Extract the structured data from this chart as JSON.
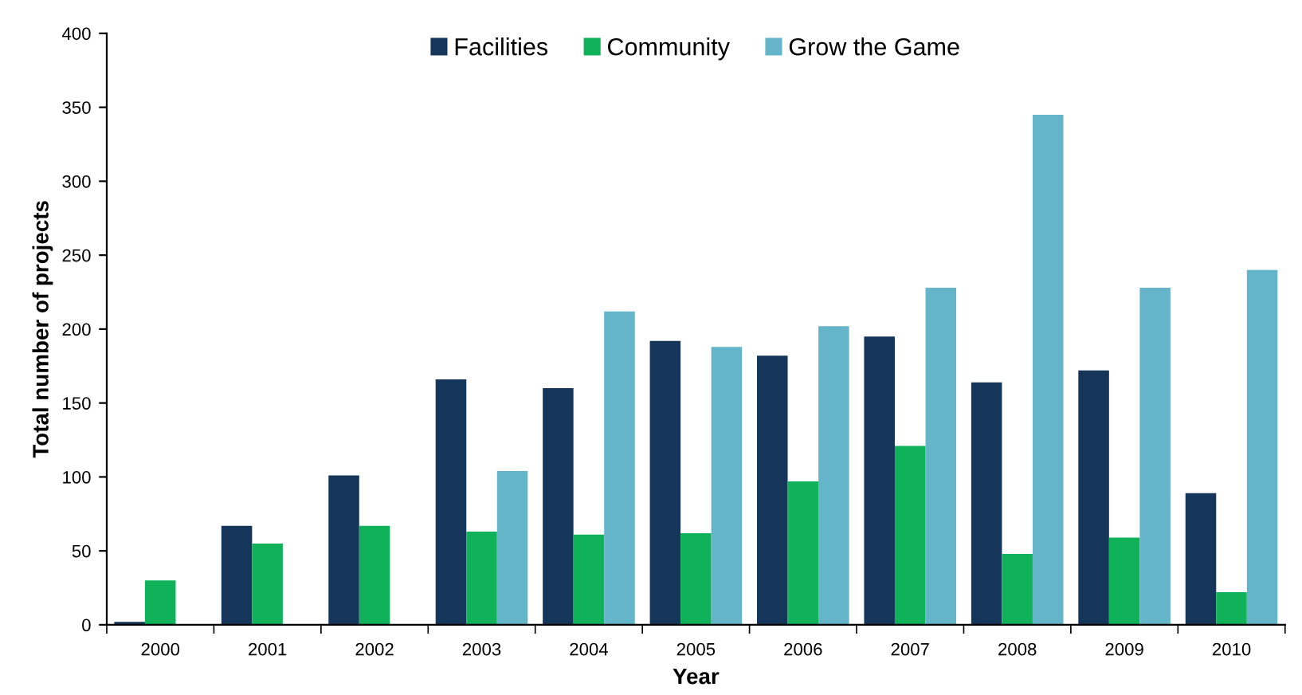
{
  "chart_data": {
    "type": "bar",
    "xlabel": "Year",
    "ylabel": "Total number of projects",
    "categories": [
      "2000",
      "2001",
      "2002",
      "2003",
      "2004",
      "2005",
      "2006",
      "2007",
      "2008",
      "2009",
      "2010"
    ],
    "series": [
      {
        "name": "Facilities",
        "color": "#15355a",
        "values": [
          2,
          67,
          101,
          166,
          160,
          192,
          182,
          195,
          164,
          172,
          89
        ]
      },
      {
        "name": "Community",
        "color": "#10b259",
        "values": [
          30,
          55,
          67,
          63,
          61,
          62,
          97,
          121,
          48,
          59,
          22
        ]
      },
      {
        "name": "Grow the Game",
        "color": "#65b5ca",
        "values": [
          null,
          null,
          null,
          104,
          212,
          188,
          202,
          228,
          345,
          228,
          240
        ]
      }
    ],
    "ylim": [
      0,
      400
    ],
    "yticks": [
      0,
      50,
      100,
      150,
      200,
      250,
      300,
      350,
      400
    ],
    "grid": false,
    "legend": "top"
  }
}
